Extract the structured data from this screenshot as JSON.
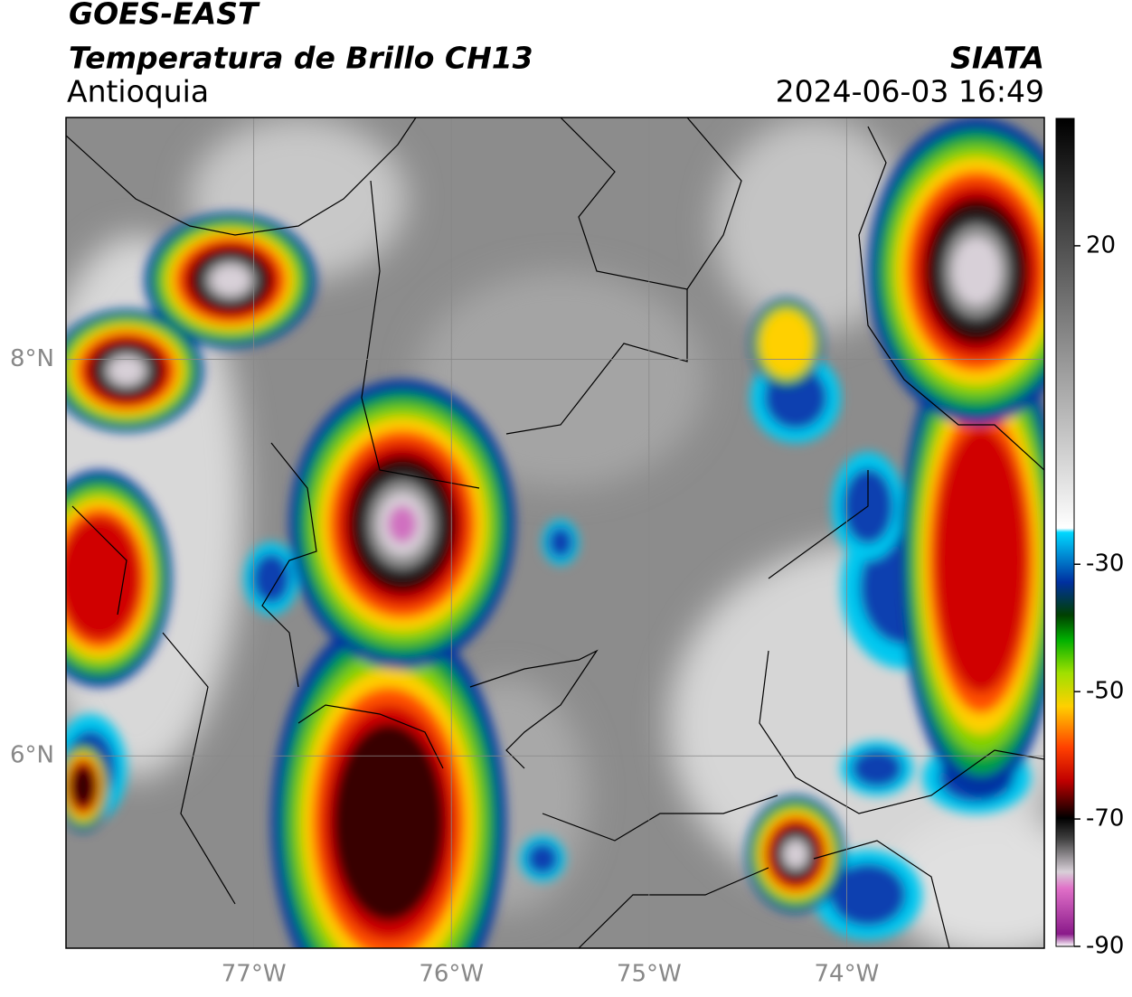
{
  "header": {
    "title": "GOES-EAST",
    "subtitle": "Temperatura de Brillo CH13",
    "region": "Antioquia",
    "source": "SIATA",
    "datetime": "2024-06-03 16:49"
  },
  "map": {
    "lonlim": [
      -77.95,
      -73.0
    ],
    "latlim": [
      5.03,
      9.22
    ],
    "lonticks": [
      {
        "value": -77,
        "label": "77°W"
      },
      {
        "value": -76,
        "label": "76°W"
      },
      {
        "value": -75,
        "label": "75°W"
      },
      {
        "value": -74,
        "label": "74°W"
      }
    ],
    "latticks": [
      {
        "value": 8,
        "label": "8°N"
      },
      {
        "value": 6,
        "label": "6°N"
      }
    ]
  },
  "colorbar": {
    "lim": [
      -90,
      40
    ],
    "ticks": [
      20,
      -30,
      -50,
      -70,
      -90
    ]
  }
}
